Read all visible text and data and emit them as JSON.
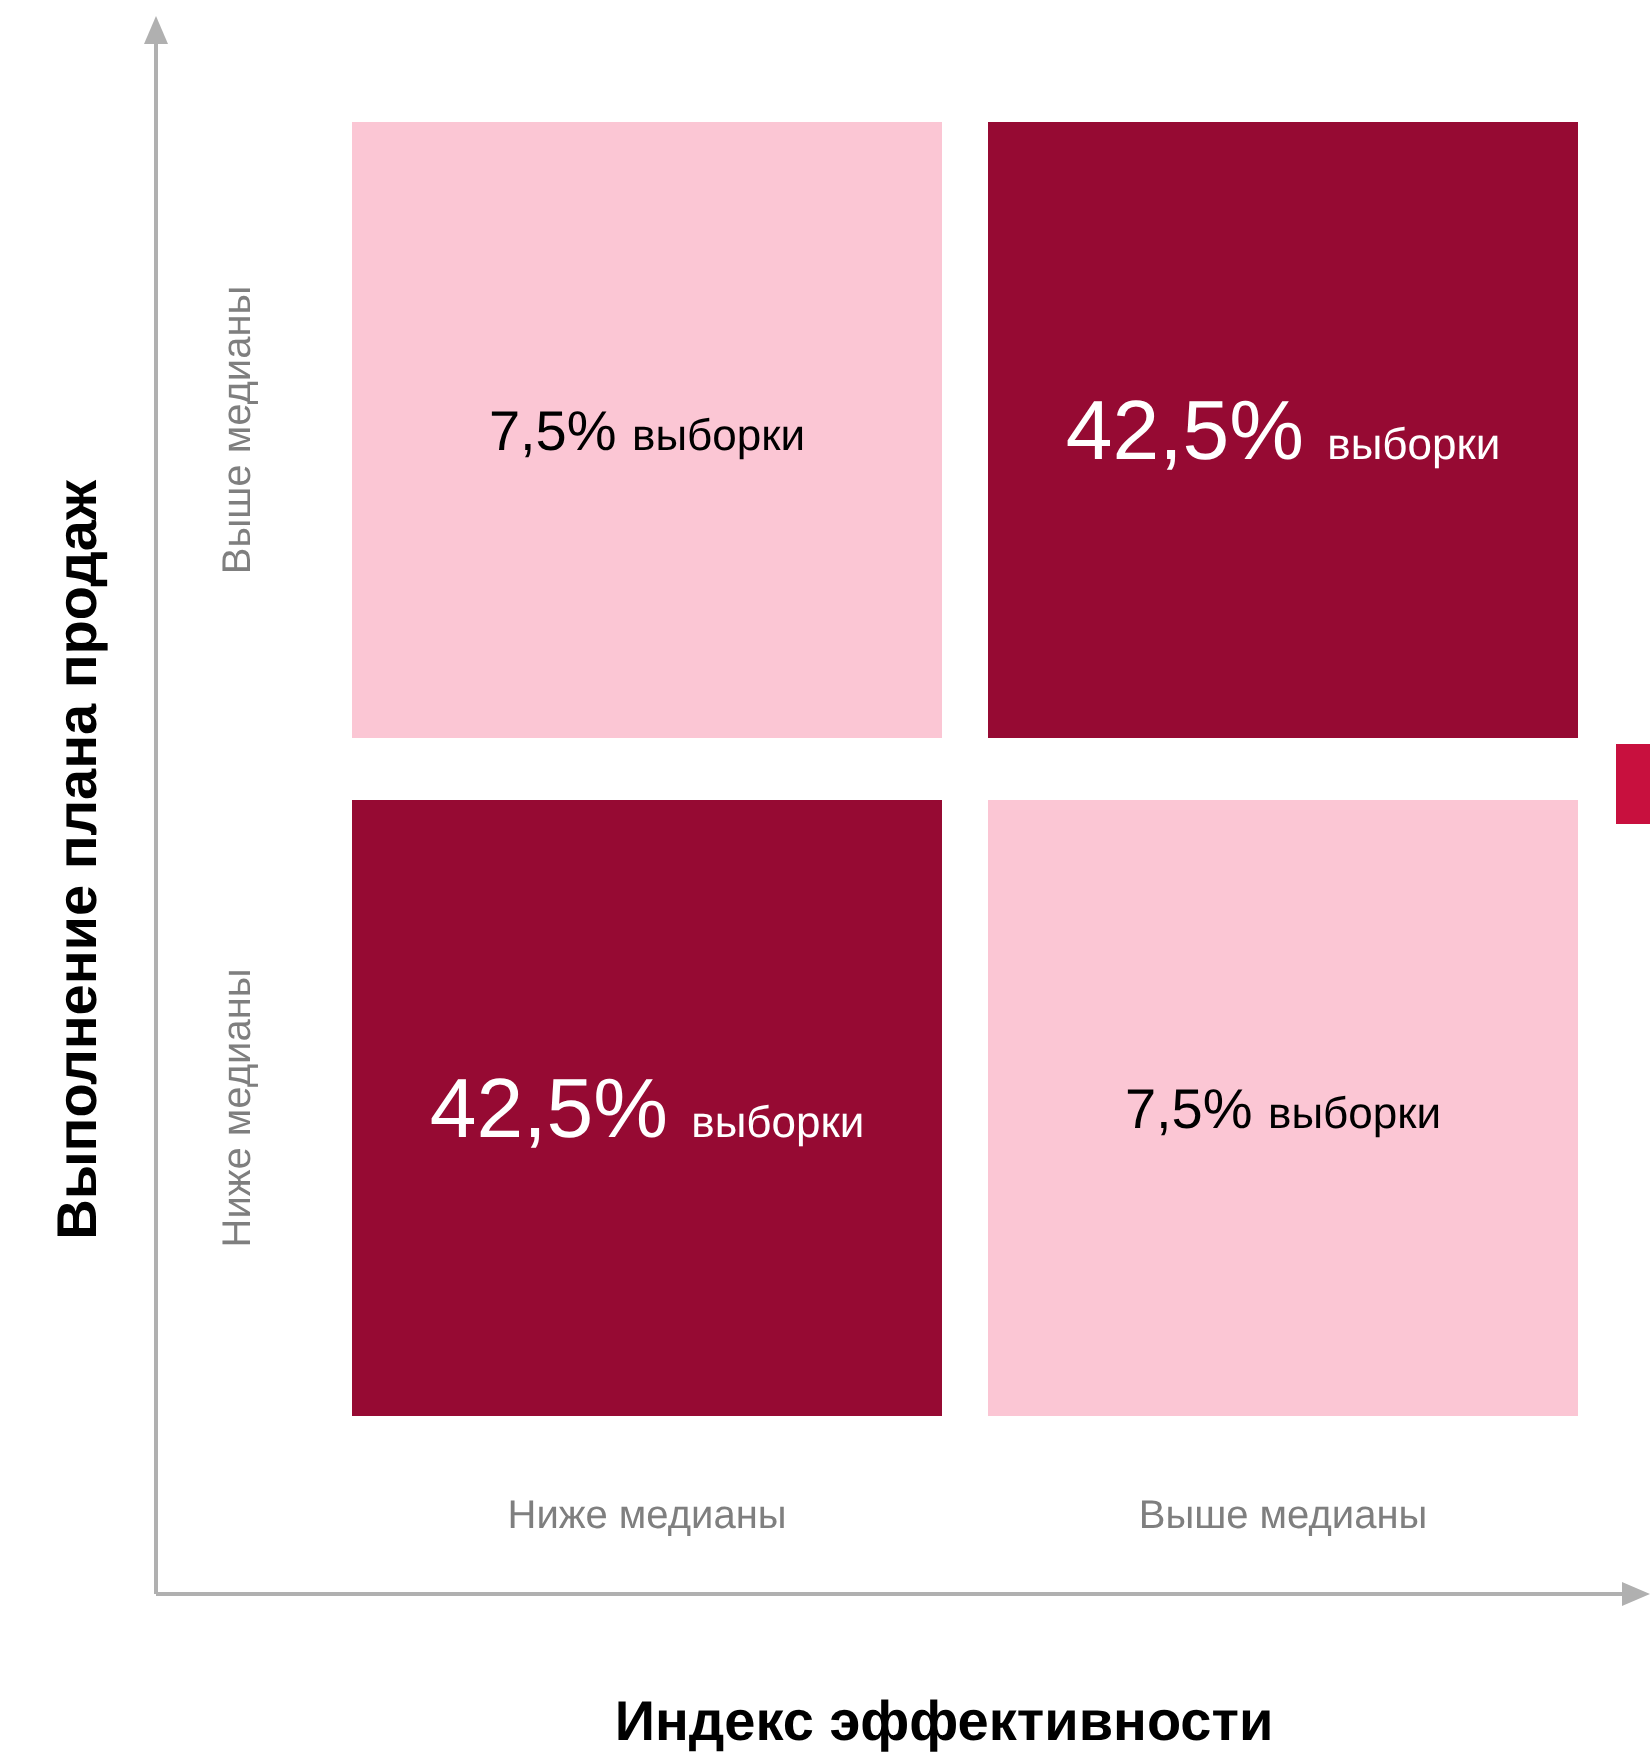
{
  "chart_data": {
    "type": "heatmap",
    "xlabel": "Индекс эффективности",
    "ylabel": "Выполнение плана продаж",
    "categories": [
      "Ниже медианы",
      "Выше медианы"
    ],
    "y_categories": [
      "Выше медианы",
      "Ниже медианы"
    ],
    "cells": [
      [
        7.5,
        42.5
      ],
      [
        42.5,
        7.5
      ]
    ],
    "cell_labels": [
      [
        "7,5% выборки",
        "42,5% выборки"
      ],
      [
        "42,5% выборки",
        "7,5% выборки"
      ]
    ],
    "colors": [
      "#fbc6d4",
      "#960a33"
    ]
  }
}
